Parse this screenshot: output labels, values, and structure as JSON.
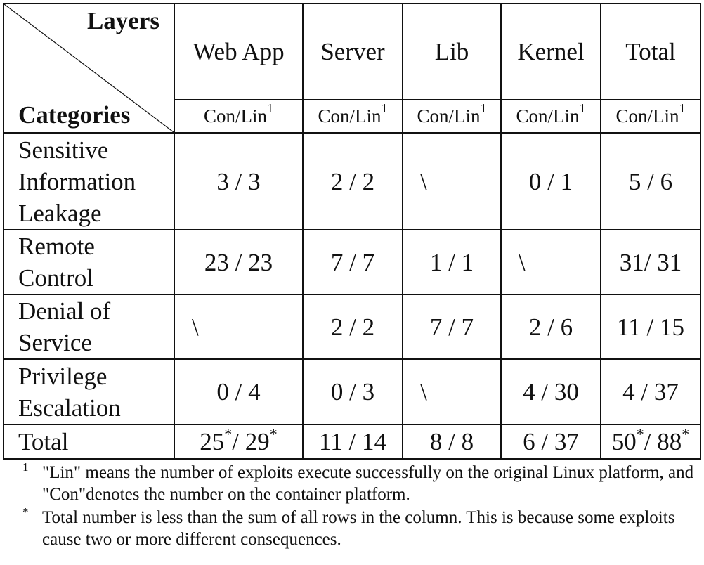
{
  "header": {
    "layers_label": "Layers",
    "categories_label": "Categories",
    "columns": [
      "Web App",
      "Server",
      "Lib",
      "Kernel",
      "Total"
    ],
    "subheader": "Con/Lin",
    "subheader_mark": "1"
  },
  "rows": [
    {
      "category": "Sensitive Information Leakage",
      "cells": [
        "3 / 3",
        "2 / 2",
        "\\",
        "0 / 1",
        "5 / 6"
      ]
    },
    {
      "category": "Remote Control",
      "cells": [
        "23 / 23",
        "7 / 7",
        "1 / 1",
        "\\",
        "31/ 31"
      ]
    },
    {
      "category": "Denial of Service",
      "cells": [
        "\\",
        "2 / 2",
        "7 / 7",
        "2 / 6",
        "11 / 15"
      ]
    },
    {
      "category": "Privilege Escalation",
      "cells": [
        "0 / 4",
        "0 / 3",
        "\\",
        "4 / 30",
        "4 / 37"
      ]
    }
  ],
  "total_row": {
    "label": "Total",
    "webapp_con": "25",
    "webapp_lin": "29",
    "server": "11 / 14",
    "lib": "8 / 8",
    "kernel": "6 / 37",
    "total_con": "50",
    "total_lin": "88",
    "star": "*"
  },
  "footnotes": [
    {
      "mark": "1",
      "text": "\"Lin\" means the number of exploits execute successfully on the original Linux platform, and \"Con\"denotes the number on the container platform."
    },
    {
      "mark": "*",
      "text": "Total number is less than the sum of all rows in the column. This is because some exploits cause two or more different consequences."
    }
  ]
}
